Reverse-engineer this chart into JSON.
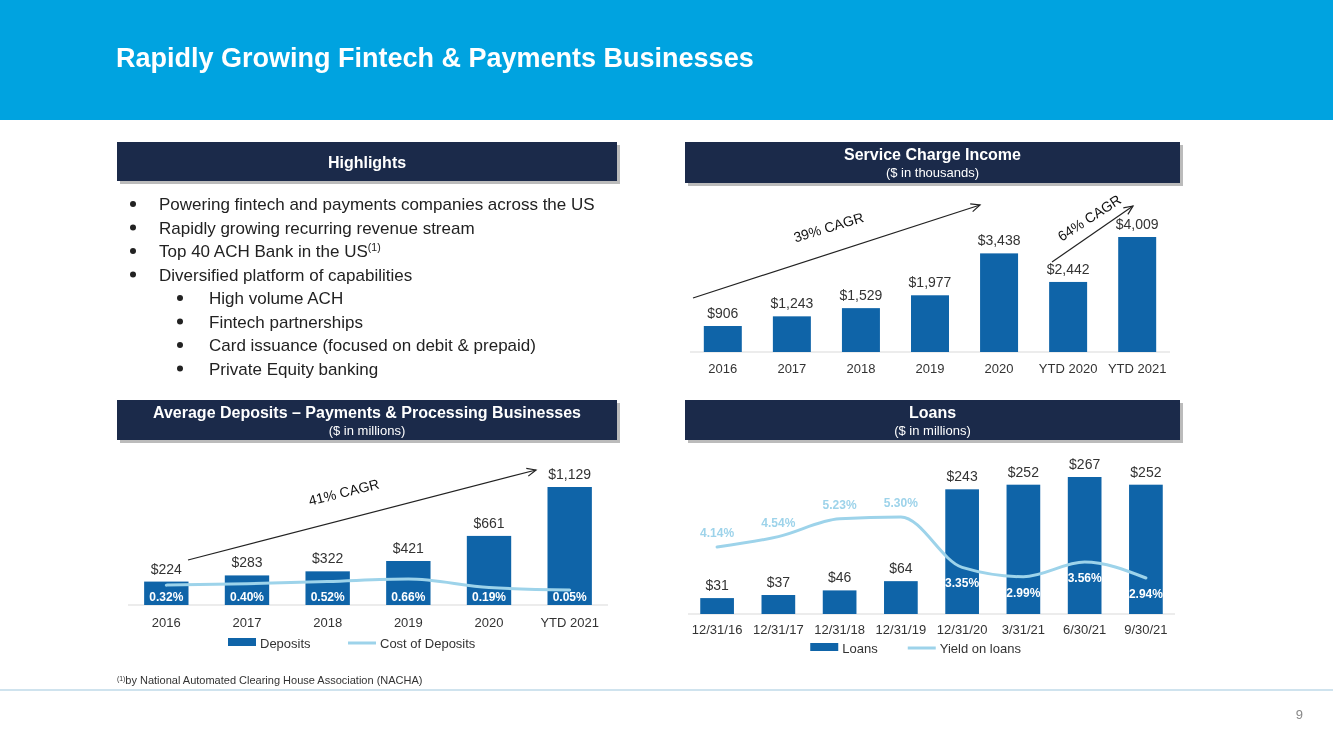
{
  "chart_data": [
    {
      "type": "other",
      "title": "Rapidly Growing Fintech & Payments Businesses",
      "subtitle": "Highlights",
      "annotations": [
        "Powering fintech and payments companies across the US",
        "Rapidly growing recurring revenue stream",
        "Top 40 ACH Bank in the US$^{(1)}$",
        "Diversified platform of capabilities",
        "High volume ACH",
        "Fintech partnerships",
        "Card issuance (focused on debit & prepaid)",
        "Private Equity banking",
        "$^{(1)}$by National Automated Clearing House Association (NACHA)",
        "9"
      ]
    },
    {
      "type": "bar",
      "title": "Service Charge Income",
      "subtitle": "($ in thousands)",
      "categories": [
        "2016",
        "2017",
        "2018",
        "2019",
        "2020",
        "YTD 2020",
        "YTD 2021"
      ],
      "values": [
        906,
        1243,
        1529,
        1977,
        3438,
        2442,
        4009
      ],
      "color": "#0f64a8",
      "value_labels": [
        "$906",
        "$1,243",
        "$1,529",
        "$1,977",
        "$3,438",
        "$2,442",
        "$4,009"
      ],
      "annotations": [
        "39% CAGR",
        "64% CAGR"
      ]
    },
    {
      "type": "bar",
      "title": "Average Deposits – Payments & Processing Businesses",
      "subtitle": "($ in millions)",
      "categories": [
        "2016",
        "2017",
        "2018",
        "2019",
        "2020",
        "YTD 2021"
      ],
      "legend": "bottom",
      "annotations": [
        "41% CAGR"
      ],
      "series": [
        {
          "name": "Deposits",
          "color": "#0f64a8",
          "values": [
            224,
            283,
            322,
            421,
            661,
            1129
          ],
          "value_labels": [
            "$224",
            "$283",
            "$322",
            "$421",
            "$661",
            "$1,129"
          ]
        },
        {
          "name": "Cost of Deposits",
          "type": "line",
          "axis": "y2",
          "color": "#9dd3ea",
          "values": [
            0.32,
            0.4,
            0.52,
            0.66,
            0.19,
            0.05
          ],
          "value_labels": [
            "0.32%",
            "0.40%",
            "0.52%",
            "0.66%",
            "0.19%",
            "0.05%"
          ]
        }
      ]
    },
    {
      "type": "bar",
      "title": "Loans",
      "subtitle": "($ in millions)",
      "categories": [
        "12/31/16",
        "12/31/17",
        "12/31/18",
        "12/31/19",
        "12/31/20",
        "3/31/21",
        "6/30/21",
        "9/30/21"
      ],
      "legend": "bottom",
      "series": [
        {
          "name": "Loans",
          "color": "#0f64a8",
          "values": [
            31,
            37,
            46,
            64,
            243,
            252,
            267,
            252
          ],
          "value_labels": [
            "$31",
            "$37",
            "$46",
            "$64",
            "$243",
            "$252",
            "$267",
            "$252"
          ]
        },
        {
          "name": "Yield on loans",
          "type": "line",
          "axis": "y2",
          "color": "#9dd3ea",
          "values": [
            4.14,
            4.54,
            5.23,
            5.3,
            3.35,
            2.99,
            3.56,
            2.94
          ],
          "value_labels": [
            "4.14%",
            "4.54%",
            "5.23%",
            "5.30%",
            "3.35%",
            "2.99%",
            "3.56%",
            "2.94%"
          ]
        }
      ]
    }
  ]
}
